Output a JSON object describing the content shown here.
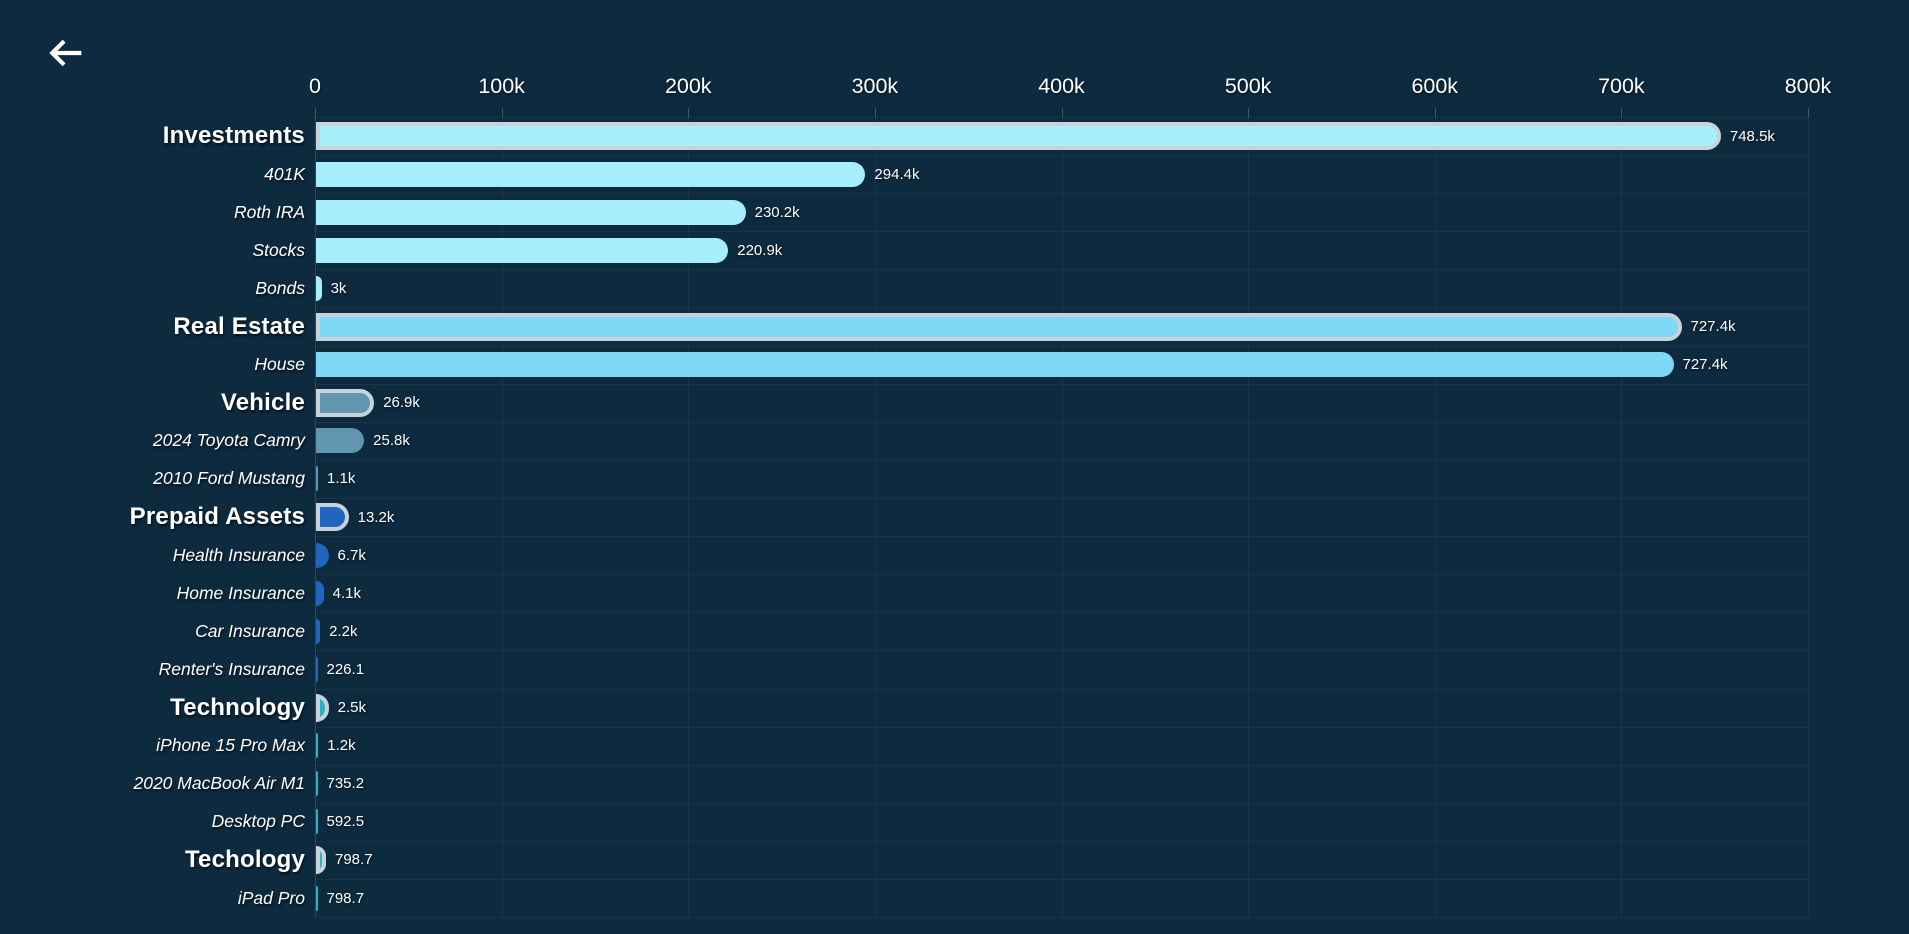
{
  "header": {
    "back_icon": "arrow-left-icon"
  },
  "colors": {
    "background": "#0d2a3f",
    "text": "#ffffff",
    "category_outline": "#c9d2da",
    "grid": "rgba(255,255,255,0.05)",
    "group_investments": "#a6eefc",
    "group_real_estate": "#7ed9f7",
    "group_vehicle": "#6295b0",
    "group_prepaid_assets": "#2166bd",
    "group_technology": "#2cb1c9",
    "group_techology": "#2cb1c9"
  },
  "chart_data": {
    "type": "bar",
    "orientation": "horizontal",
    "title": "",
    "xlabel": "",
    "ylabel": "",
    "x_axis": {
      "min": 0,
      "max": 800000,
      "tick_labels": [
        "0",
        "100k",
        "200k",
        "300k",
        "400k",
        "500k",
        "600k",
        "700k",
        "800k"
      ],
      "tick_values": [
        0,
        100000,
        200000,
        300000,
        400000,
        500000,
        600000,
        700000,
        800000
      ],
      "grid": true,
      "position": "top"
    },
    "rows": [
      {
        "label": "Investments",
        "is_category": true,
        "value": 748500,
        "value_label": "748.5k",
        "color": "#a6eefc"
      },
      {
        "label": "401K",
        "is_category": false,
        "value": 294400,
        "value_label": "294.4k",
        "color": "#a6eefc"
      },
      {
        "label": "Roth IRA",
        "is_category": false,
        "value": 230200,
        "value_label": "230.2k",
        "color": "#a6eefc"
      },
      {
        "label": "Stocks",
        "is_category": false,
        "value": 220900,
        "value_label": "220.9k",
        "color": "#a6eefc"
      },
      {
        "label": "Bonds",
        "is_category": false,
        "value": 3000,
        "value_label": "3k",
        "color": "#a6eefc"
      },
      {
        "label": "Real Estate",
        "is_category": true,
        "value": 727400,
        "value_label": "727.4k",
        "color": "#7ed9f7"
      },
      {
        "label": "House",
        "is_category": false,
        "value": 727400,
        "value_label": "727.4k",
        "color": "#7ed9f7"
      },
      {
        "label": "Vehicle",
        "is_category": true,
        "value": 26900,
        "value_label": "26.9k",
        "color": "#6295b0"
      },
      {
        "label": "2024 Toyota Camry",
        "is_category": false,
        "value": 25800,
        "value_label": "25.8k",
        "color": "#6295b0"
      },
      {
        "label": "2010 Ford Mustang",
        "is_category": false,
        "value": 1100,
        "value_label": "1.1k",
        "color": "#6295b0"
      },
      {
        "label": "Prepaid Assets",
        "is_category": true,
        "value": 13200,
        "value_label": "13.2k",
        "color": "#2166bd"
      },
      {
        "label": "Health Insurance",
        "is_category": false,
        "value": 6700,
        "value_label": "6.7k",
        "color": "#2166bd"
      },
      {
        "label": "Home Insurance",
        "is_category": false,
        "value": 4100,
        "value_label": "4.1k",
        "color": "#2166bd"
      },
      {
        "label": "Car Insurance",
        "is_category": false,
        "value": 2200,
        "value_label": "2.2k",
        "color": "#2166bd"
      },
      {
        "label": "Renter's Insurance",
        "is_category": false,
        "value": 226.1,
        "value_label": "226.1",
        "color": "#2166bd"
      },
      {
        "label": "Technology",
        "is_category": true,
        "value": 2500,
        "value_label": "2.5k",
        "color": "#2cb1c9"
      },
      {
        "label": "iPhone 15 Pro Max",
        "is_category": false,
        "value": 1200,
        "value_label": "1.2k",
        "color": "#2cb1c9"
      },
      {
        "label": "2020 MacBook Air M1",
        "is_category": false,
        "value": 735.2,
        "value_label": "735.2",
        "color": "#2cb1c9"
      },
      {
        "label": "Desktop PC",
        "is_category": false,
        "value": 592.5,
        "value_label": "592.5",
        "color": "#2cb1c9"
      },
      {
        "label": "Techology",
        "is_category": true,
        "value": 798.7,
        "value_label": "798.7",
        "color": "#2cb1c9"
      },
      {
        "label": "iPad Pro",
        "is_category": false,
        "value": 798.7,
        "value_label": "798.7",
        "color": "#2cb1c9"
      }
    ]
  }
}
